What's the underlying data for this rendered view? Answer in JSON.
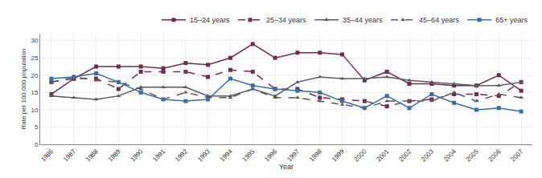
{
  "chart_data": {
    "type": "line",
    "x": [
      1986,
      1987,
      1988,
      1989,
      1990,
      1991,
      1992,
      1993,
      1994,
      1995,
      1996,
      1997,
      1998,
      1999,
      2000,
      2001,
      2002,
      2003,
      2004,
      2005,
      2006,
      2007
    ],
    "series": [
      {
        "name": "15–24 years",
        "color": "#6d2d52",
        "line_style": "solid",
        "marker": "square",
        "values": [
          14.5,
          19.0,
          22.5,
          22.5,
          22.5,
          22.0,
          23.5,
          23.0,
          25.0,
          29.0,
          25.0,
          26.5,
          26.5,
          26.0,
          18.5,
          21.0,
          17.5,
          17.5,
          17.0,
          17.0,
          20.0,
          15.5
        ]
      },
      {
        "name": "25–34 years",
        "color": "#6d2d52",
        "line_style": "dashed",
        "marker": "square",
        "values": [
          18.0,
          19.0,
          19.0,
          16.0,
          21.0,
          21.0,
          21.0,
          19.5,
          21.5,
          21.0,
          16.0,
          16.0,
          13.5,
          13.0,
          12.5,
          11.0,
          12.5,
          13.0,
          14.5,
          14.5,
          14.0,
          18.0
        ]
      },
      {
        "name": "35–44 years",
        "color": "#5a5a5a",
        "line_style": "solid",
        "marker": "triangle",
        "values": [
          14.0,
          13.5,
          13.0,
          14.0,
          16.5,
          16.5,
          16.5,
          14.0,
          14.0,
          16.0,
          14.0,
          18.0,
          19.5,
          19.0,
          19.0,
          19.5,
          18.5,
          18.0,
          17.5,
          17.0,
          17.0,
          18.0
        ]
      },
      {
        "name": "45–64 years",
        "color": "#5a5a5a",
        "line_style": "dashed",
        "marker": "triangle",
        "values": [
          18.0,
          19.5,
          18.5,
          18.0,
          16.0,
          13.0,
          15.0,
          13.5,
          13.5,
          16.0,
          13.5,
          13.5,
          12.5,
          11.5,
          10.5,
          12.5,
          12.5,
          12.5,
          15.0,
          12.5,
          14.5,
          13.5
        ]
      },
      {
        "name": "65+ years",
        "color": "#3a6ea8",
        "line_style": "solid",
        "marker": "square",
        "values": [
          19.0,
          19.5,
          20.5,
          18.0,
          15.0,
          13.0,
          12.5,
          13.0,
          19.0,
          17.0,
          16.0,
          15.5,
          15.0,
          12.5,
          10.5,
          14.0,
          10.5,
          14.5,
          12.0,
          10.0,
          10.5,
          9.5
        ]
      }
    ],
    "xlabel": "Year",
    "ylabel": "Rate per 100,000 population",
    "xlim": [
      1985.5,
      2007.5
    ],
    "xticks": [
      1986,
      1987,
      1988,
      1989,
      1990,
      1991,
      1992,
      1993,
      1994,
      1995,
      1996,
      1997,
      1998,
      1999,
      2000,
      2001,
      2002,
      2003,
      2004,
      2005,
      2006,
      2007
    ],
    "ylim": [
      0,
      32
    ],
    "yticks": [
      0,
      5,
      10,
      15,
      20,
      25,
      30
    ],
    "grid": true,
    "legend": "upper right"
  }
}
